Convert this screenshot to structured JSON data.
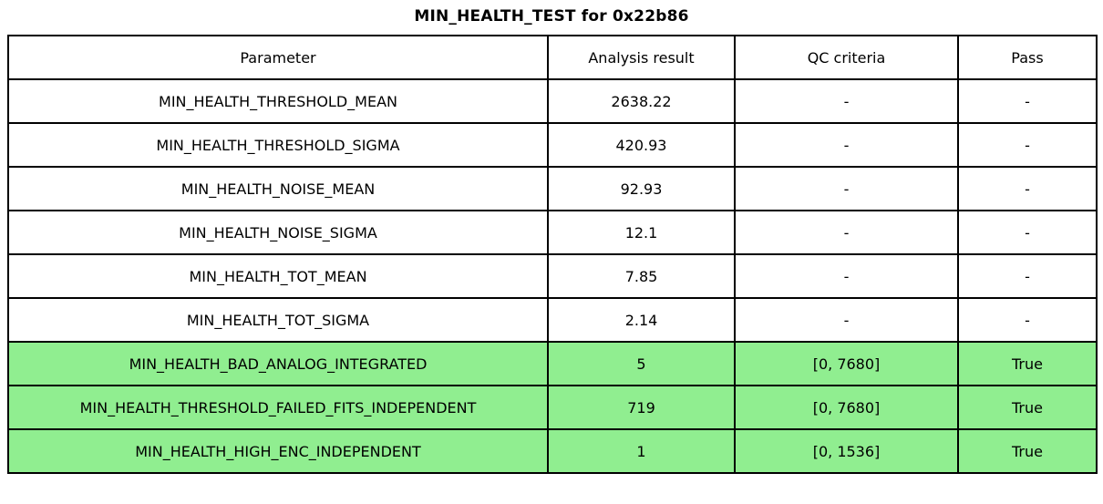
{
  "title": "MIN_HEALTH_TEST for 0x22b86",
  "colors": {
    "highlight_green": "#90ee90",
    "border": "#000000"
  },
  "table": {
    "headers": [
      "Parameter",
      "Analysis result",
      "QC criteria",
      "Pass"
    ],
    "rows": [
      {
        "parameter": "MIN_HEALTH_THRESHOLD_MEAN",
        "result": "2638.22",
        "qc": "-",
        "pass": "-",
        "highlight": false
      },
      {
        "parameter": "MIN_HEALTH_THRESHOLD_SIGMA",
        "result": "420.93",
        "qc": "-",
        "pass": "-",
        "highlight": false
      },
      {
        "parameter": "MIN_HEALTH_NOISE_MEAN",
        "result": "92.93",
        "qc": "-",
        "pass": "-",
        "highlight": false
      },
      {
        "parameter": "MIN_HEALTH_NOISE_SIGMA",
        "result": "12.1",
        "qc": "-",
        "pass": "-",
        "highlight": false
      },
      {
        "parameter": "MIN_HEALTH_TOT_MEAN",
        "result": "7.85",
        "qc": "-",
        "pass": "-",
        "highlight": false
      },
      {
        "parameter": "MIN_HEALTH_TOT_SIGMA",
        "result": "2.14",
        "qc": "-",
        "pass": "-",
        "highlight": false
      },
      {
        "parameter": "MIN_HEALTH_BAD_ANALOG_INTEGRATED",
        "result": "5",
        "qc": "[0, 7680]",
        "pass": "True",
        "highlight": true
      },
      {
        "parameter": "MIN_HEALTH_THRESHOLD_FAILED_FITS_INDEPENDENT",
        "result": "719",
        "qc": "[0, 7680]",
        "pass": "True",
        "highlight": true
      },
      {
        "parameter": "MIN_HEALTH_HIGH_ENC_INDEPENDENT",
        "result": "1",
        "qc": "[0, 1536]",
        "pass": "True",
        "highlight": true
      }
    ]
  }
}
